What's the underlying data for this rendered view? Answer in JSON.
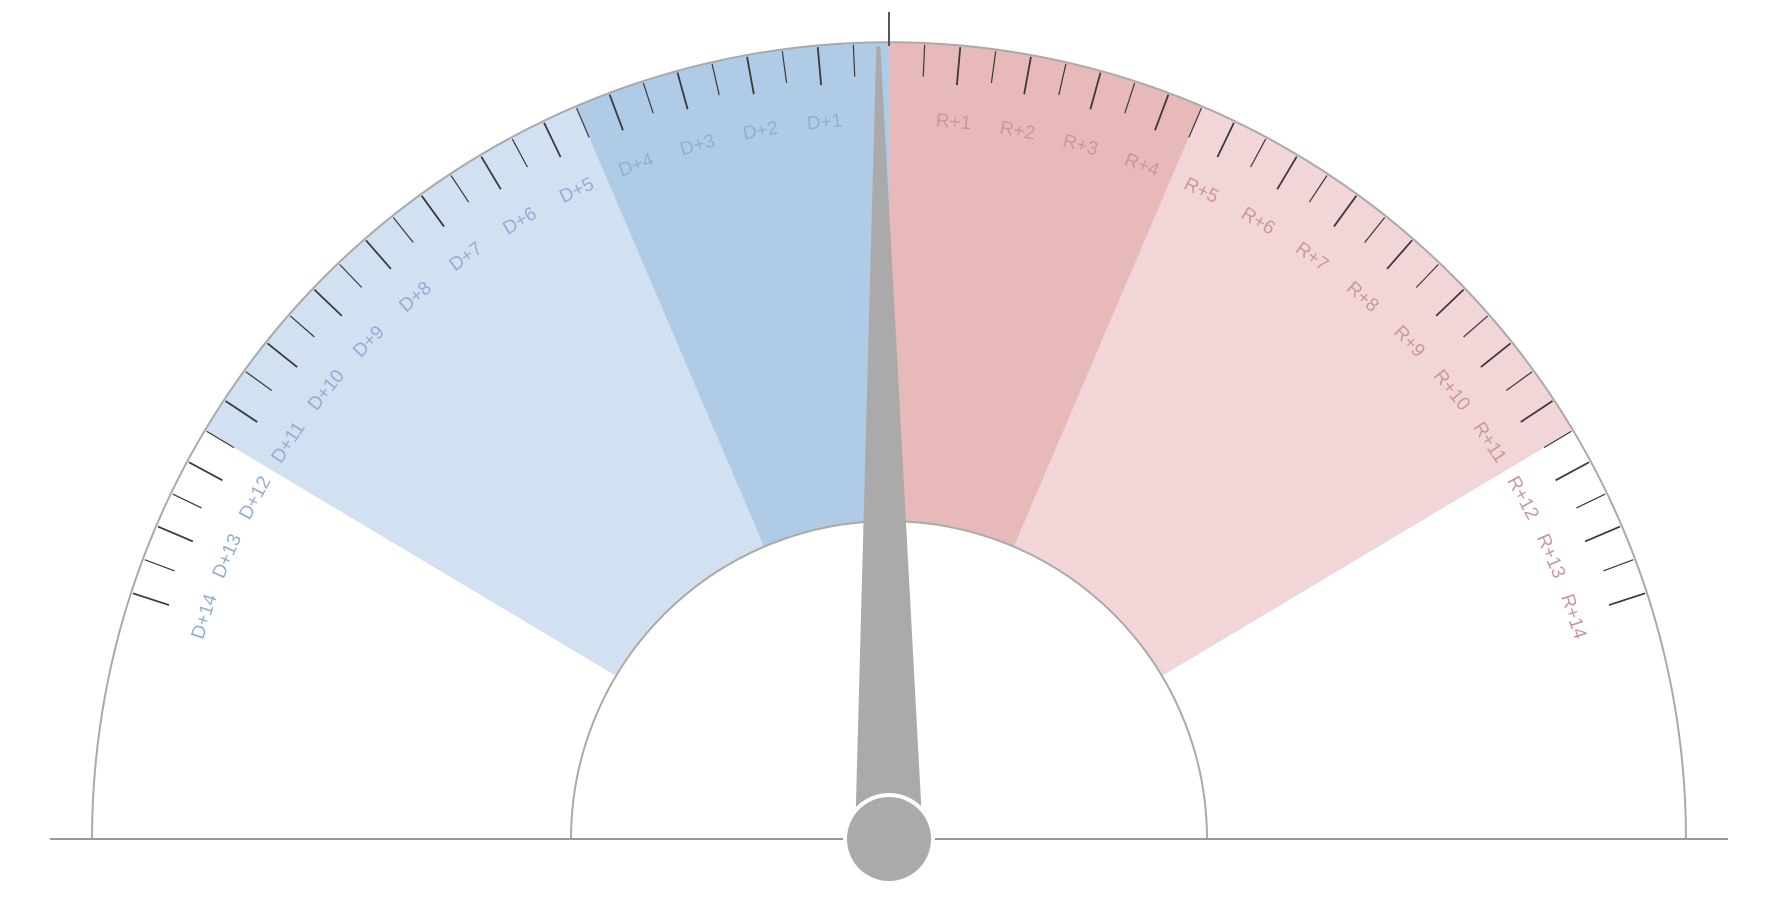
{
  "chart_data": {
    "type": "gauge",
    "scale": {
      "min": -14,
      "max": 14,
      "units_left": "D",
      "units_right": "R",
      "minor_step": 0.5
    },
    "needle_value": -0.15,
    "bands": [
      {
        "name": "dem-outer",
        "from": -11.5,
        "to": -4.5,
        "color": "#d2e1f1"
      },
      {
        "name": "dem-inner",
        "from": -4.5,
        "to": 0,
        "color": "#b0cbe6"
      },
      {
        "name": "rep-inner",
        "from": 0,
        "to": 4.5,
        "color": "#e7b9b9"
      },
      {
        "name": "rep-outer",
        "from": 4.5,
        "to": 11.5,
        "color": "#f2d6d7"
      }
    ],
    "tick_labels": [
      {
        "value": -14,
        "text": "D+14"
      },
      {
        "value": -13,
        "text": "D+13"
      },
      {
        "value": -12,
        "text": "D+12"
      },
      {
        "value": -11,
        "text": "D+11"
      },
      {
        "value": -10,
        "text": "D+10"
      },
      {
        "value": -9,
        "text": "D+9"
      },
      {
        "value": -8,
        "text": "D+8"
      },
      {
        "value": -7,
        "text": "D+7"
      },
      {
        "value": -6,
        "text": "D+6"
      },
      {
        "value": -5,
        "text": "D+5"
      },
      {
        "value": -4,
        "text": "D+4"
      },
      {
        "value": -3,
        "text": "D+3"
      },
      {
        "value": -2,
        "text": "D+2"
      },
      {
        "value": -1,
        "text": "D+1"
      },
      {
        "value": 1,
        "text": "R+1"
      },
      {
        "value": 2,
        "text": "R+2"
      },
      {
        "value": 3,
        "text": "R+3"
      },
      {
        "value": 4,
        "text": "R+4"
      },
      {
        "value": 5,
        "text": "R+5"
      },
      {
        "value": 6,
        "text": "R+6"
      },
      {
        "value": 7,
        "text": "R+7"
      },
      {
        "value": 8,
        "text": "R+8"
      },
      {
        "value": 9,
        "text": "R+9"
      },
      {
        "value": 10,
        "text": "R+10"
      },
      {
        "value": 11,
        "text": "R+11"
      },
      {
        "value": 12,
        "text": "R+12"
      },
      {
        "value": 13,
        "text": "R+13"
      },
      {
        "value": 14,
        "text": "R+14"
      }
    ],
    "colors": {
      "dem_label": "#93aed2",
      "rep_label": "#c9989a",
      "tick": "#3a3a3a",
      "outline": "#aaaaaa",
      "needle": "#aaaaaa",
      "baseline": "#9a9a9a"
    }
  }
}
